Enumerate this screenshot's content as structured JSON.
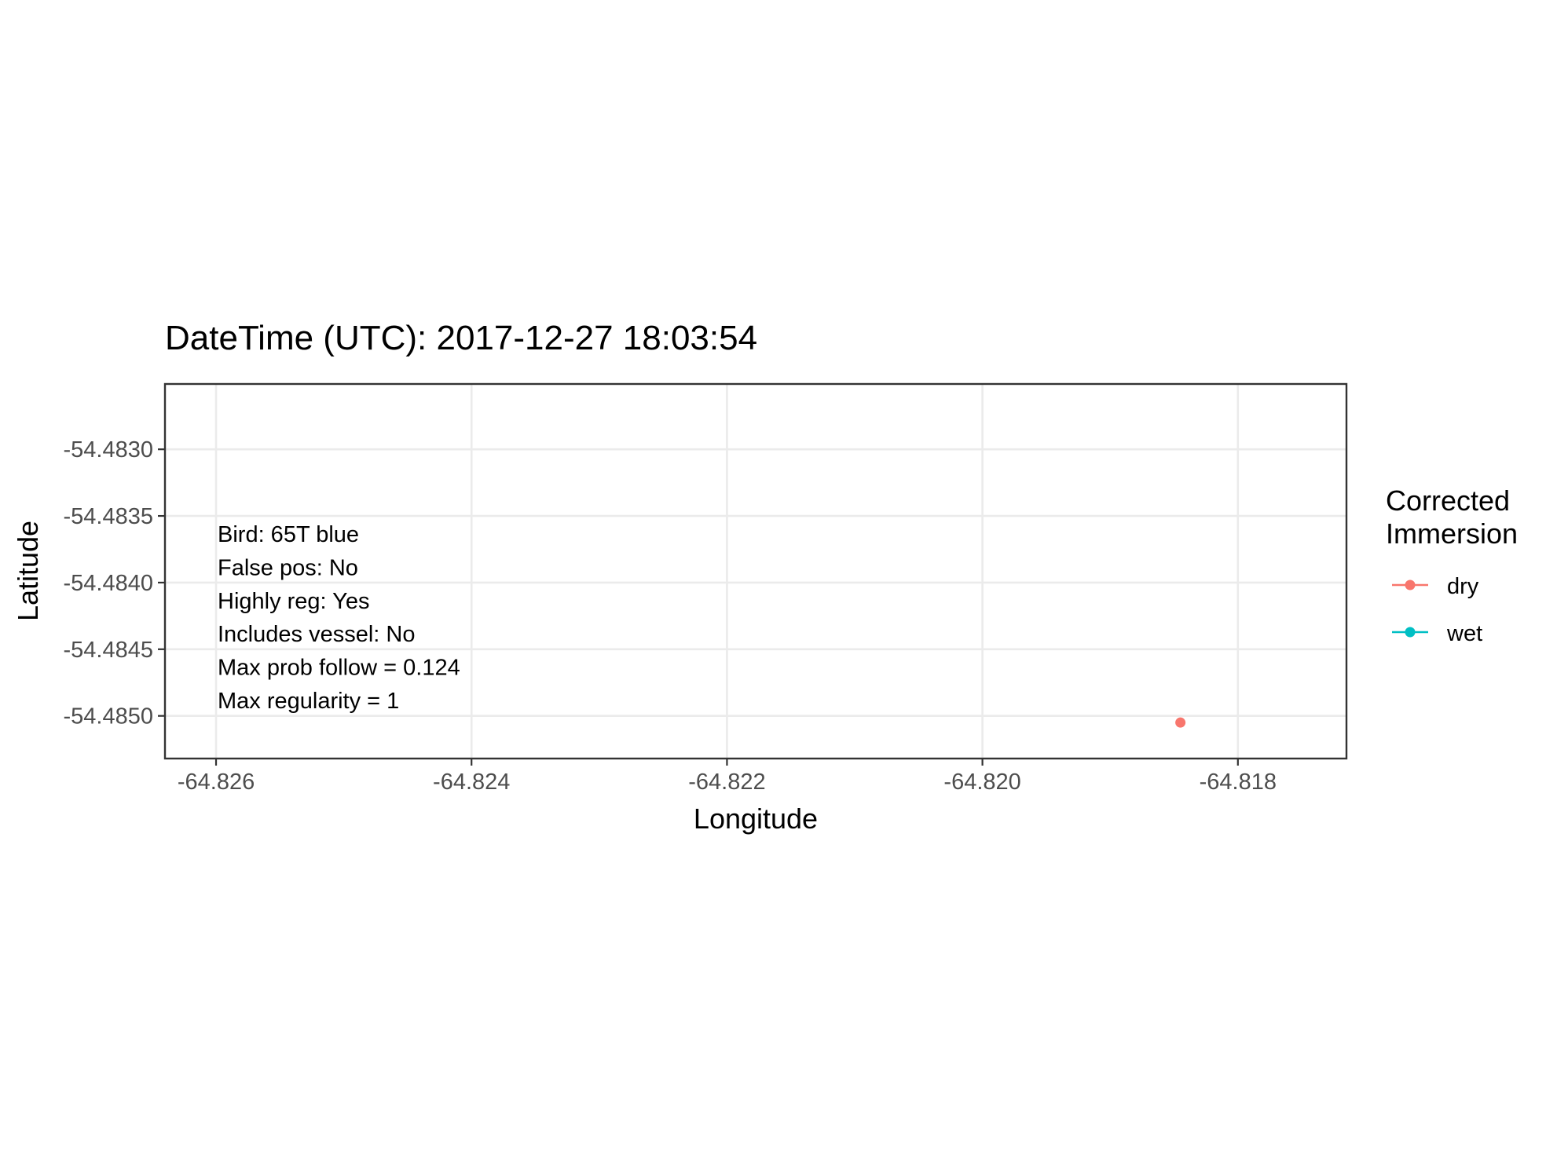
{
  "chart_data": {
    "type": "scatter",
    "title": "DateTime (UTC): 2017-12-27 18:03:54",
    "xlabel": "Longitude",
    "ylabel": "Latitude",
    "xlim": [
      -64.8264,
      -64.81715
    ],
    "ylim": [
      -54.48532,
      -54.48251
    ],
    "x_ticks": [
      -64.826,
      -64.824,
      -64.822,
      -64.82,
      -64.818
    ],
    "x_tick_labels": [
      "-64.826",
      "-64.824",
      "-64.822",
      "-64.820",
      "-64.818"
    ],
    "y_ticks": [
      -54.483,
      -54.4835,
      -54.484,
      -54.4845,
      -54.485
    ],
    "y_tick_labels": [
      "-54.4830",
      "-54.4835",
      "-54.4840",
      "-54.4845",
      "-54.4850"
    ],
    "grid": true,
    "legend": {
      "title_lines": [
        "Corrected",
        "Immersion"
      ],
      "placement": "right",
      "entries": [
        {
          "label": "dry",
          "color": "#F8766D"
        },
        {
          "label": "wet",
          "color": "#00BFC4"
        }
      ]
    },
    "series": [
      {
        "name": "dry",
        "color": "#F8766D",
        "points": [
          {
            "x": -64.81845,
            "y": -54.48505
          }
        ]
      }
    ],
    "annotations": [
      "Bird: 65T blue",
      "False pos: No",
      "Highly reg: Yes",
      "Includes vessel: No",
      "Max prob follow = 0.124",
      "Max regularity = 1"
    ]
  }
}
